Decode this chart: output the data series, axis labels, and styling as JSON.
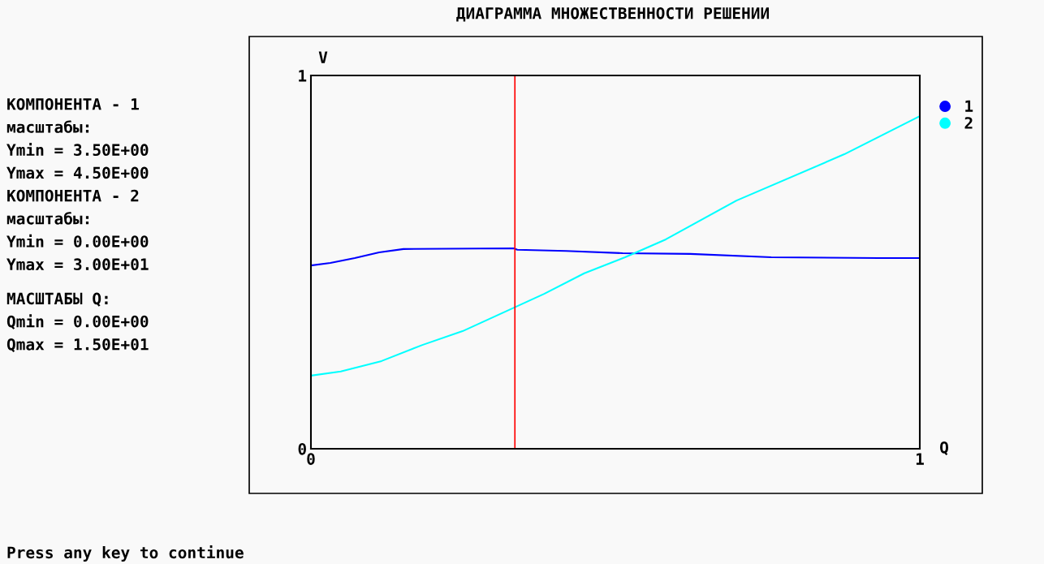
{
  "chart_data": {
    "type": "line",
    "title": "ДИАГРАММА МНОЖЕСТВЕННОСТИ РЕШЕНИИ",
    "xlabel": "Q",
    "ylabel": "V",
    "xlim": [
      0,
      1
    ],
    "ylim": [
      0,
      1
    ],
    "xticks": [
      0,
      1
    ],
    "yticks": [
      0,
      1
    ],
    "legend": "top right",
    "series": [
      {
        "name": "1",
        "color": "#0000ff",
        "x": [
          0,
          0.032,
          0.072,
          0.112,
          0.152,
          0.333,
          0.339,
          0.419,
          0.512,
          0.623,
          0.756,
          0.933,
          1.0
        ],
        "values": [
          0.491,
          0.498,
          0.511,
          0.526,
          0.535,
          0.537,
          0.533,
          0.53,
          0.524,
          0.522,
          0.513,
          0.511,
          0.511
        ]
      },
      {
        "name": "2",
        "color": "#00ffff",
        "x": [
          0,
          0.049,
          0.116,
          0.183,
          0.249,
          0.316,
          0.383,
          0.449,
          0.516,
          0.583,
          0.699,
          0.876,
          1.0
        ],
        "values": [
          0.196,
          0.207,
          0.235,
          0.278,
          0.315,
          0.365,
          0.415,
          0.47,
          0.513,
          0.561,
          0.665,
          0.789,
          0.891
        ]
      }
    ],
    "ref_lines": [
      {
        "axis": "x",
        "value": 0.335,
        "color": "#ff0000"
      }
    ],
    "annotations": [
      "КОМПОНЕНТА - 1",
      "масштабы:",
      "Ymin = 3.50E+00",
      "Ymax = 4.50E+00",
      "КОМПОНЕНТА - 2",
      "масштабы:",
      "Ymin = 0.00E+00",
      "Ymax = 3.00E+01",
      "МАСШТАБЫ Q:",
      "Qmin = 0.00E+00",
      "Qmax = 1.50E+01",
      "Press any key to continue"
    ]
  }
}
